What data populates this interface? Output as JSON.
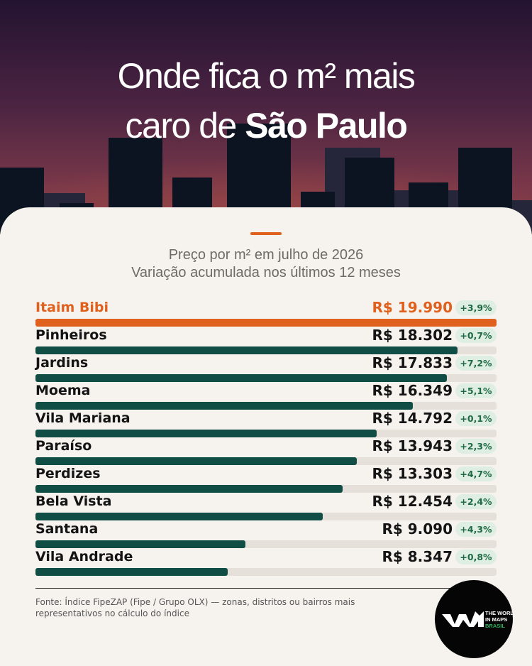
{
  "header": {
    "title_line1": "Onde fica o m² mais",
    "title_line2_prefix": "caro de ",
    "title_line2_bold": "São Paulo"
  },
  "subtitle": {
    "line1": "Preço por m² em julho de 2026",
    "line2": "Variação acumulada nos últimos 12 meses"
  },
  "chart_data": {
    "type": "bar",
    "orientation": "horizontal",
    "title": "Preço por m² em julho de 2026",
    "subtitle": "Variação acumulada nos últimos 12 meses",
    "xlim": [
      0,
      19990
    ],
    "categories": [
      "Itaim Bibi",
      "Pinheiros",
      "Jardins",
      "Moema",
      "Vila Mariana",
      "Paraíso",
      "Perdizes",
      "Bela Vista",
      "Santana",
      "Vila Andrade"
    ],
    "values": [
      19990,
      18302,
      17833,
      16349,
      14792,
      13943,
      13303,
      12454,
      9090,
      8347
    ],
    "value_labels": [
      "R$ 19.990",
      "R$ 18.302",
      "R$ 17.833",
      "R$ 16.349",
      "R$ 14.792",
      "R$ 13.943",
      "R$ 13.303",
      "R$ 12.454",
      "R$ 9.090",
      "R$ 8.347"
    ],
    "change_labels": [
      "+3,9%",
      "+0,7%",
      "+7,2%",
      "+5,1%",
      "+0,1%",
      "+2,3%",
      "+4,7%",
      "+2,4%",
      "+4,3%",
      "+0,8%"
    ],
    "highlight_index": 0,
    "colors": {
      "highlight": "#e0611e",
      "bar": "#0f4d45",
      "track": "#e5e1da",
      "change_bg": "#dfeee3",
      "change_text": "#1f6a45"
    }
  },
  "footer": {
    "source": "Fonte: Índice FipeZAP (Fipe / Grupo OLX) — zonas, distritos ou bairros mais representativos no cálculo do índice"
  },
  "logo": {
    "line1": "THE WORLD",
    "line2": "IN MAPS",
    "line3": "BRASIL"
  },
  "colors": {
    "sky_top": "#2a1636",
    "sky_bottom": "#7e3a4c",
    "accent": "#e0611e",
    "background": "#f6f3ee"
  }
}
